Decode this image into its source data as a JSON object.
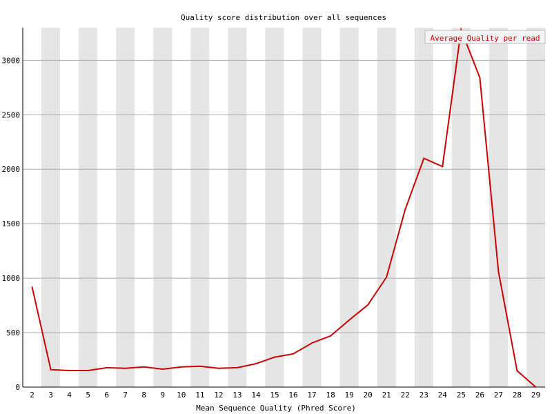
{
  "chart_data": {
    "type": "line",
    "title": "Quality score distribution over all sequences",
    "xlabel": "Mean Sequence Quality (Phred Score)",
    "ylabel": "",
    "x": [
      2,
      3,
      4,
      5,
      6,
      7,
      8,
      9,
      10,
      11,
      12,
      13,
      14,
      15,
      16,
      17,
      18,
      19,
      20,
      21,
      22,
      23,
      24,
      25,
      26,
      27,
      28,
      29
    ],
    "ylim": [
      0,
      3300
    ],
    "yticks": [
      0,
      500,
      1000,
      1500,
      2000,
      2500,
      3000
    ],
    "series": [
      {
        "name": "Average Quality per read",
        "color": "#cc0000",
        "values": [
          920,
          160,
          152,
          152,
          178,
          172,
          185,
          165,
          185,
          192,
          172,
          178,
          215,
          275,
          305,
          405,
          470,
          615,
          755,
          1010,
          1630,
          2100,
          2025,
          3280,
          2840,
          1060,
          150,
          0
        ]
      }
    ],
    "legend_position": "top-right",
    "grid": "horizontal",
    "alternating_bands": true
  },
  "colors": {
    "band": "#e5e5e5",
    "gridline": "#aaaaaa",
    "axis": "#000000",
    "series": "#cc0000"
  }
}
